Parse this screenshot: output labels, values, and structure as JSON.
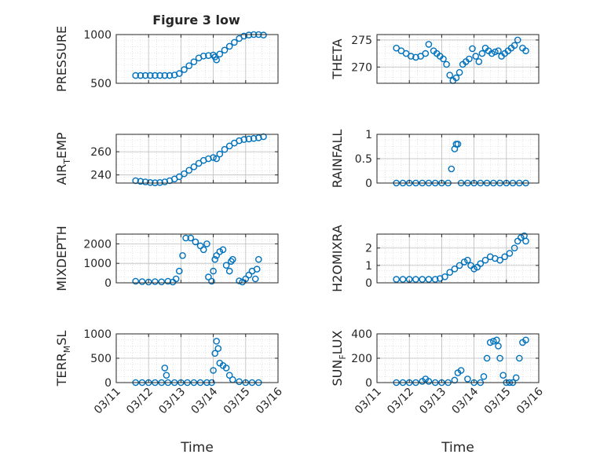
{
  "figure": {
    "title": "Figure 3 low",
    "marker_color": "#0072BD"
  },
  "chart_data": [
    {
      "type": "scatter",
      "title": "Figure 3 low",
      "xlabel": "",
      "ylabel": "PRESSURE",
      "xlim": [
        0,
        5
      ],
      "ylim": [
        500,
        1000
      ],
      "yticks": [
        500,
        1000
      ],
      "grid": true,
      "minor_grid": true,
      "series": [
        {
          "x": [
            0.6,
            0.75,
            0.9,
            1.05,
            1.2,
            1.35,
            1.5,
            1.65,
            1.8,
            1.95,
            2.1,
            2.25,
            2.4,
            2.55,
            2.7,
            2.85,
            3.0,
            3.05,
            3.1,
            3.2,
            3.35,
            3.5,
            3.65,
            3.8,
            3.95,
            4.1,
            4.25,
            4.4,
            4.55
          ],
          "y": [
            580,
            580,
            580,
            580,
            580,
            580,
            580,
            580,
            585,
            600,
            640,
            680,
            720,
            760,
            780,
            785,
            790,
            770,
            740,
            800,
            840,
            880,
            920,
            960,
            985,
            995,
            1000,
            1000,
            995
          ]
        }
      ]
    },
    {
      "type": "scatter",
      "xlabel": "",
      "ylabel": "THETA",
      "xlim": [
        0,
        5
      ],
      "ylim": [
        267,
        276
      ],
      "yticks": [
        270,
        275
      ],
      "grid": true,
      "minor_grid": true,
      "series": [
        {
          "x": [
            0.6,
            0.75,
            0.9,
            1.05,
            1.2,
            1.35,
            1.5,
            1.6,
            1.75,
            1.85,
            1.95,
            2.05,
            2.15,
            2.25,
            2.35,
            2.45,
            2.55,
            2.65,
            2.75,
            2.85,
            2.95,
            3.05,
            3.15,
            3.25,
            3.35,
            3.45,
            3.55,
            3.65,
            3.75,
            3.85,
            3.95,
            4.05,
            4.15,
            4.25,
            4.35,
            4.5,
            4.6
          ],
          "y": [
            273.5,
            273.0,
            272.5,
            272.0,
            271.8,
            272.0,
            272.5,
            274.2,
            273.0,
            272.5,
            272.0,
            271.5,
            270.5,
            268.5,
            267.5,
            268.0,
            269.0,
            270.5,
            271.0,
            271.5,
            273.4,
            272.0,
            271.0,
            272.5,
            273.5,
            273.0,
            272.5,
            272.8,
            273.0,
            272.0,
            272.5,
            273.0,
            273.5,
            274.0,
            275.0,
            273.5,
            273.0
          ]
        }
      ]
    },
    {
      "type": "scatter",
      "xlabel": "",
      "ylabel": "AIR",
      "ylabel_sub": "T",
      "ylabel_tail": "EMP",
      "xlim": [
        0,
        5
      ],
      "ylim": [
        233,
        275
      ],
      "yticks": [
        240,
        260
      ],
      "grid": true,
      "minor_grid": true,
      "series": [
        {
          "x": [
            0.6,
            0.75,
            0.9,
            1.05,
            1.2,
            1.35,
            1.5,
            1.65,
            1.8,
            1.95,
            2.1,
            2.25,
            2.4,
            2.55,
            2.7,
            2.85,
            3.0,
            3.1,
            3.2,
            3.35,
            3.5,
            3.65,
            3.8,
            3.95,
            4.1,
            4.25,
            4.4,
            4.55
          ],
          "y": [
            235,
            234.5,
            234,
            233.5,
            233.2,
            233.5,
            234,
            235,
            236.5,
            238.5,
            241,
            244,
            247,
            250,
            252.5,
            254,
            255,
            254,
            258,
            262,
            265,
            267.5,
            269.5,
            270.5,
            271,
            271.5,
            272,
            273
          ]
        }
      ]
    },
    {
      "type": "scatter",
      "xlabel": "",
      "ylabel": "RAINFALL",
      "xlim": [
        0,
        5
      ],
      "ylim": [
        0,
        1
      ],
      "yticks": [
        0,
        0.5,
        1
      ],
      "grid": true,
      "minor_grid": true,
      "series": [
        {
          "x": [
            0.6,
            0.8,
            1.0,
            1.2,
            1.4,
            1.6,
            1.8,
            2.0,
            2.2,
            2.3,
            2.4,
            2.45,
            2.5,
            2.6,
            2.8,
            3.0,
            3.2,
            3.4,
            3.6,
            3.8,
            4.0,
            4.2,
            4.4,
            4.6
          ],
          "y": [
            0,
            0,
            0,
            0,
            0,
            0,
            0,
            0,
            0,
            0.29,
            0.7,
            0.8,
            0.8,
            0,
            0,
            0,
            0,
            0,
            0,
            0,
            0,
            0,
            0,
            0
          ]
        }
      ]
    },
    {
      "type": "scatter",
      "xlabel": "",
      "ylabel": "MIXDEPTH",
      "xlim": [
        0,
        5
      ],
      "ylim": [
        0,
        2500
      ],
      "yticks": [
        0,
        1000,
        2000
      ],
      "grid": true,
      "minor_grid": true,
      "series": [
        {
          "x": [
            0.6,
            0.8,
            1.0,
            1.2,
            1.4,
            1.6,
            1.75,
            1.85,
            1.95,
            2.05,
            2.15,
            2.3,
            2.45,
            2.6,
            2.7,
            2.8,
            2.85,
            2.95,
            3.0,
            3.05,
            3.1,
            3.2,
            3.3,
            3.4,
            3.5,
            3.55,
            3.6,
            3.8,
            3.9,
            4.0,
            4.1,
            4.2,
            4.3,
            4.35,
            4.4
          ],
          "y": [
            80,
            60,
            40,
            60,
            50,
            80,
            40,
            200,
            600,
            1400,
            2300,
            2300,
            2100,
            1900,
            1700,
            2000,
            300,
            80,
            600,
            1200,
            1400,
            1600,
            1700,
            900,
            600,
            1100,
            1200,
            100,
            40,
            200,
            400,
            600,
            200,
            700,
            1200
          ]
        }
      ]
    },
    {
      "type": "scatter",
      "xlabel": "",
      "ylabel": "H2OMIXRA",
      "xlim": [
        0,
        5
      ],
      "ylim": [
        0,
        2.8
      ],
      "yticks": [
        0,
        1,
        2
      ],
      "grid": true,
      "minor_grid": true,
      "series": [
        {
          "x": [
            0.6,
            0.8,
            1.0,
            1.2,
            1.4,
            1.6,
            1.8,
            1.95,
            2.1,
            2.25,
            2.4,
            2.55,
            2.7,
            2.8,
            2.9,
            3.0,
            3.1,
            3.2,
            3.35,
            3.5,
            3.65,
            3.8,
            3.95,
            4.1,
            4.25,
            4.35,
            4.45,
            4.55,
            4.6
          ],
          "y": [
            0.2,
            0.2,
            0.2,
            0.2,
            0.2,
            0.2,
            0.2,
            0.25,
            0.35,
            0.6,
            0.8,
            1.0,
            1.2,
            1.3,
            1.0,
            0.8,
            0.9,
            1.1,
            1.3,
            1.5,
            1.4,
            1.3,
            1.5,
            1.7,
            2.0,
            2.4,
            2.6,
            2.7,
            2.4
          ]
        }
      ]
    },
    {
      "type": "scatter",
      "xlabel": "Time",
      "ylabel": "TERR",
      "ylabel_sub": "M",
      "ylabel_tail": "SL",
      "xlim": [
        0,
        5
      ],
      "ylim": [
        0,
        1000
      ],
      "yticks": [
        0,
        500,
        1000
      ],
      "xticks": [
        0,
        1,
        2,
        3,
        4,
        5
      ],
      "xticklabels": [
        "03/11",
        "03/12",
        "03/13",
        "03/14",
        "03/15",
        "03/16"
      ],
      "grid": true,
      "minor_grid": true,
      "series": [
        {
          "x": [
            0.6,
            0.8,
            1.0,
            1.2,
            1.4,
            1.5,
            1.55,
            1.6,
            1.8,
            2.0,
            2.2,
            2.4,
            2.6,
            2.8,
            2.95,
            3.0,
            3.05,
            3.1,
            3.15,
            3.2,
            3.3,
            3.4,
            3.5,
            3.6,
            3.8,
            4.0,
            4.2,
            4.4
          ],
          "y": [
            0,
            0,
            0,
            0,
            0,
            300,
            150,
            0,
            0,
            0,
            0,
            0,
            0,
            0,
            0,
            250,
            600,
            850,
            700,
            400,
            350,
            300,
            150,
            60,
            20,
            0,
            0,
            0
          ]
        }
      ]
    },
    {
      "type": "scatter",
      "xlabel": "Time",
      "ylabel": "SUN",
      "ylabel_sub": "F",
      "ylabel_tail": "LUX",
      "xlim": [
        0,
        5
      ],
      "ylim": [
        0,
        400
      ],
      "yticks": [
        0,
        200,
        400
      ],
      "xticks": [
        0,
        1,
        2,
        3,
        4,
        5
      ],
      "xticklabels": [
        "03/11",
        "03/12",
        "03/13",
        "03/14",
        "03/15",
        "03/16"
      ],
      "grid": true,
      "minor_grid": true,
      "series": [
        {
          "x": [
            0.6,
            0.8,
            1.0,
            1.2,
            1.4,
            1.5,
            1.6,
            1.8,
            2.0,
            2.2,
            2.4,
            2.5,
            2.6,
            2.8,
            3.0,
            3.2,
            3.3,
            3.4,
            3.5,
            3.6,
            3.7,
            3.75,
            3.8,
            3.9,
            4.0,
            4.1,
            4.2,
            4.3,
            4.4,
            4.5,
            4.6
          ],
          "y": [
            0,
            0,
            0,
            0,
            10,
            30,
            10,
            0,
            0,
            0,
            20,
            80,
            100,
            30,
            0,
            0,
            50,
            200,
            330,
            340,
            350,
            300,
            200,
            60,
            0,
            0,
            0,
            40,
            200,
            330,
            350
          ]
        }
      ]
    }
  ]
}
